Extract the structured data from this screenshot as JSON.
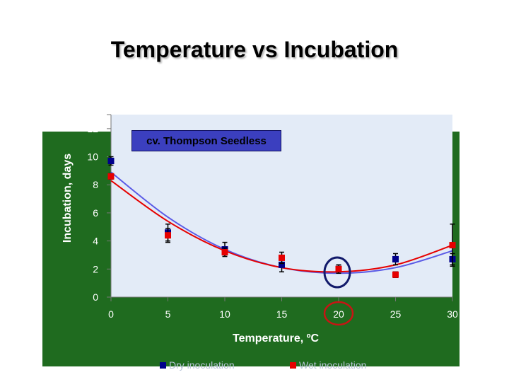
{
  "chart_data": {
    "type": "scatter",
    "title": "Temperature vs Incubation",
    "xlabel": "Temperature, ºC",
    "ylabel": "Incubation, days",
    "annotation": "cv. Thompson Seedless",
    "xlim": [
      0,
      30
    ],
    "ylim": [
      0,
      13
    ],
    "x_ticks": [
      "0",
      "5",
      "10",
      "15",
      "20",
      "25",
      "30"
    ],
    "y_ticks": [
      "0",
      "2",
      "4",
      "6",
      "8",
      "10",
      "12"
    ],
    "grid": false,
    "legend_position": "bottom",
    "series": [
      {
        "name": "Dry inoculation",
        "color": "#00008b",
        "fit_color": "#5a5ae6",
        "x": [
          0,
          5,
          10,
          15,
          20,
          25,
          30
        ],
        "y": [
          9.7,
          4.6,
          3.4,
          2.3,
          2.0,
          2.7,
          2.7
        ],
        "err": [
          0.3,
          0.6,
          0.5,
          0.5,
          0.2,
          0.4,
          0.4
        ],
        "fit": [
          8.9,
          5.7,
          3.4,
          2.1,
          1.7,
          2.1,
          3.3
        ]
      },
      {
        "name": "Wet inoculation",
        "color": "#e60000",
        "fit_color": "#e60000",
        "x": [
          0,
          5,
          10,
          15,
          20,
          25,
          30
        ],
        "y": [
          8.6,
          4.4,
          3.2,
          2.8,
          2.0,
          1.6,
          3.7
        ],
        "err": [
          0.2,
          0.5,
          0.3,
          0.4,
          0.3,
          0.2,
          1.5
        ],
        "fit": [
          8.3,
          5.4,
          3.3,
          2.1,
          1.8,
          2.3,
          3.7
        ]
      }
    ]
  }
}
